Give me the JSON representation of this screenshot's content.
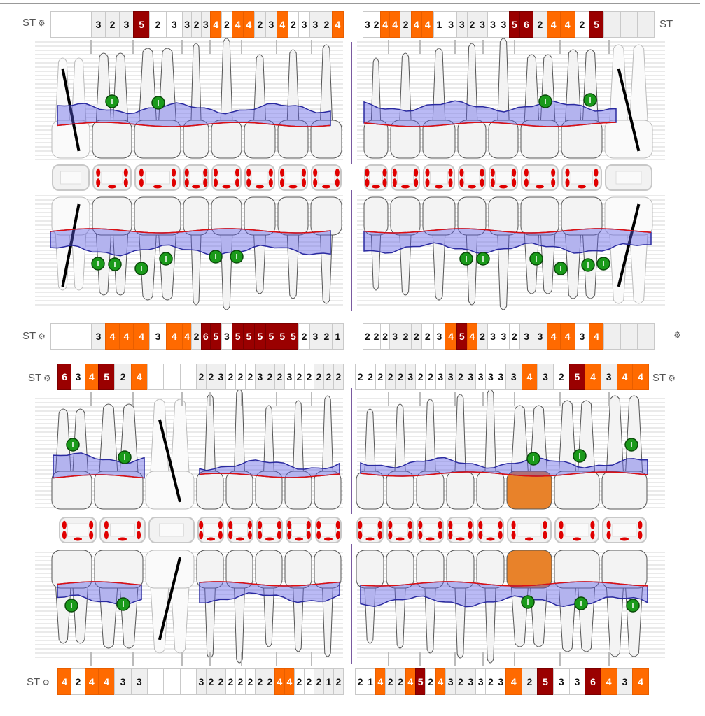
{
  "st_label": "ST",
  "colors": {
    "orange": "#ff6a00",
    "dark_red": "#9a0000",
    "gum": "#5a5ae0",
    "gingival_line": "#e01010",
    "marker": "#1a9a1a"
  },
  "rows": {
    "upper_buccal_left": [
      "",
      "",
      "",
      "3",
      "2",
      "3",
      "5",
      "2",
      "3",
      "3",
      "2",
      "3",
      "4",
      "2",
      "4",
      "4",
      "2",
      "3",
      "4",
      "2",
      "3",
      "3",
      "2",
      "4"
    ],
    "upper_buccal_right": [
      "3",
      "2",
      "4",
      "4",
      "2",
      "4",
      "4",
      "1",
      "3",
      "3",
      "2",
      "3",
      "3",
      "3",
      "5",
      "6",
      "2",
      "4",
      "4",
      "2",
      "5",
      "",
      "",
      ""
    ],
    "upper_palatal_left": [
      "",
      "",
      "",
      "3",
      "4",
      "4",
      "4",
      "3",
      "4",
      "4",
      "2",
      "6",
      "5",
      "3",
      "5",
      "5",
      "5",
      "5",
      "5",
      "5",
      "2",
      "3",
      "2",
      "1"
    ],
    "upper_palatal_right": [
      "2",
      "2",
      "2",
      "3",
      "2",
      "2",
      "2",
      "3",
      "4",
      "5",
      "4",
      "2",
      "3",
      "3",
      "2",
      "3",
      "3",
      "4",
      "4",
      "3",
      "4",
      "",
      "",
      ""
    ],
    "lower_lingual_left": [
      "6",
      "3",
      "4",
      "5",
      "2",
      "4",
      "",
      "",
      "",
      "2",
      "2",
      "3",
      "2",
      "2",
      "2",
      "3",
      "2",
      "2",
      "3",
      "2",
      "2",
      "2",
      "2",
      "2"
    ],
    "lower_lingual_right": [
      "2",
      "2",
      "2",
      "2",
      "2",
      "3",
      "2",
      "2",
      "3",
      "3",
      "2",
      "3",
      "3",
      "3",
      "3",
      "3",
      "4",
      "3",
      "2",
      "5",
      "4",
      "3",
      "4",
      "4"
    ],
    "lower_buccal_left": [
      "4",
      "2",
      "4",
      "4",
      "3",
      "3",
      "",
      "",
      "",
      "3",
      "2",
      "2",
      "2",
      "2",
      "2",
      "2",
      "2",
      "4",
      "4",
      "2",
      "2",
      "2",
      "1",
      "2"
    ],
    "lower_buccal_right": [
      "2",
      "1",
      "4",
      "2",
      "2",
      "4",
      "5",
      "2",
      "4",
      "3",
      "2",
      "3",
      "3",
      "2",
      "3",
      "4",
      "2",
      "5",
      "3",
      "3",
      "6",
      "4",
      "3",
      "4"
    ]
  }
}
